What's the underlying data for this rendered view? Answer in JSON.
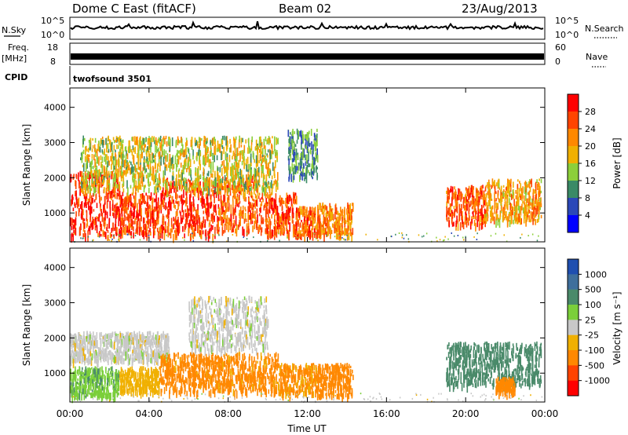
{
  "header": {
    "title": "Dome C East (fitACF)",
    "beam": "Beam 02",
    "date": "23/Aug/2013"
  },
  "status_panels": {
    "nsky_label": "N.Sky",
    "nsky_ticks": [
      "10^5",
      "10^0"
    ],
    "nsearch_label": "N.Search",
    "nsearch_ticks": [
      "10^5",
      "10^0"
    ],
    "freq_label": "Freq.",
    "freq_unit": "[MHz]",
    "freq_ticks": [
      "18",
      "8"
    ],
    "nave_label": "Nave",
    "nave_ticks": [
      "60",
      "0"
    ],
    "cpid_label": "CPID",
    "cpid_value": "twofsound 3501"
  },
  "chart_data": [
    {
      "type": "heatmap",
      "name": "power-panel",
      "xlabel": "Time UT",
      "ylabel": "Slant Range [km]",
      "xlim": [
        0,
        24
      ],
      "ylim": [
        180,
        4550
      ],
      "xticks": [
        "00:00",
        "04:00",
        "08:00",
        "12:00",
        "16:00",
        "20:00",
        "00:00"
      ],
      "yticks": [
        1000,
        2000,
        3000,
        4000
      ],
      "colorbar": {
        "label": "Power [dB]",
        "ticks": [
          "4",
          "8",
          "12",
          "16",
          "20",
          "24",
          "28"
        ],
        "range": [
          0,
          32
        ],
        "colors": [
          "#0000ff",
          "#2b48b8",
          "#3a8a66",
          "#8ccf3a",
          "#f0b000",
          "#ff8800",
          "#ff4400",
          "#ff0000"
        ]
      },
      "regions": [
        {
          "t": [
            0.0,
            2.5
          ],
          "r": [
            350,
            2200
          ],
          "level": 28
        },
        {
          "t": [
            2.5,
            4.5
          ],
          "r": [
            450,
            1600
          ],
          "level": 26
        },
        {
          "t": [
            4.5,
            7.5
          ],
          "r": [
            400,
            2000
          ],
          "level": 27
        },
        {
          "t": [
            7.5,
            9.5
          ],
          "r": [
            500,
            2100
          ],
          "level": 25
        },
        {
          "t": [
            9.5,
            11.5
          ],
          "r": [
            450,
            1600
          ],
          "level": 26
        },
        {
          "t": [
            11.5,
            12.5
          ],
          "r": [
            400,
            1200
          ],
          "level": 24
        },
        {
          "t": [
            12.5,
            14.3
          ],
          "r": [
            400,
            1300
          ],
          "level": 22
        },
        {
          "t": [
            19.0,
            21.0
          ],
          "r": [
            700,
            1800
          ],
          "level": 25
        },
        {
          "t": [
            21.0,
            23.8
          ],
          "r": [
            800,
            2000
          ],
          "level": 20
        },
        {
          "t": [
            0.5,
            10.5
          ],
          "r": [
            1700,
            3200
          ],
          "level": 16
        },
        {
          "t": [
            11.0,
            12.5
          ],
          "r": [
            2000,
            3400
          ],
          "level": 10
        }
      ]
    },
    {
      "type": "heatmap",
      "name": "velocity-panel",
      "xlabel": "Time UT",
      "ylabel": "Slant Range [km]",
      "xlim": [
        0,
        24
      ],
      "ylim": [
        180,
        4550
      ],
      "xticks": [
        "00:00",
        "04:00",
        "08:00",
        "12:00",
        "16:00",
        "20:00",
        "00:00"
      ],
      "yticks": [
        1000,
        2000,
        3000,
        4000
      ],
      "colorbar": {
        "label": "Velocity [m s⁻¹]",
        "ticks": [
          "1000",
          "500",
          "100",
          "25",
          "-25",
          "-100",
          "-500",
          "-1000"
        ],
        "colors": [
          "#1f4fb0",
          "#3f6f9c",
          "#4a8a6a",
          "#7bcf3a",
          "#c8c8c8",
          "#f0b000",
          "#ff8800",
          "#ff4400",
          "#ff0000"
        ]
      },
      "regions": [
        {
          "t": [
            0.0,
            2.5
          ],
          "r": [
            400,
            1200
          ],
          "v": 80
        },
        {
          "t": [
            0.0,
            5.0
          ],
          "r": [
            1400,
            2200
          ],
          "v": 0
        },
        {
          "t": [
            2.5,
            4.5
          ],
          "r": [
            500,
            1200
          ],
          "v": -60
        },
        {
          "t": [
            4.5,
            10.5
          ],
          "r": [
            500,
            1600
          ],
          "v": -150
        },
        {
          "t": [
            6.0,
            10.0
          ],
          "r": [
            1700,
            3200
          ],
          "v": 0
        },
        {
          "t": [
            10.5,
            12.5
          ],
          "r": [
            450,
            1300
          ],
          "v": -120
        },
        {
          "t": [
            12.5,
            14.3
          ],
          "r": [
            400,
            1300
          ],
          "v": -200
        },
        {
          "t": [
            19.0,
            23.8
          ],
          "r": [
            700,
            1900
          ],
          "v": 300
        },
        {
          "t": [
            21.5,
            22.5
          ],
          "r": [
            500,
            900
          ],
          "v": -200
        }
      ]
    }
  ]
}
